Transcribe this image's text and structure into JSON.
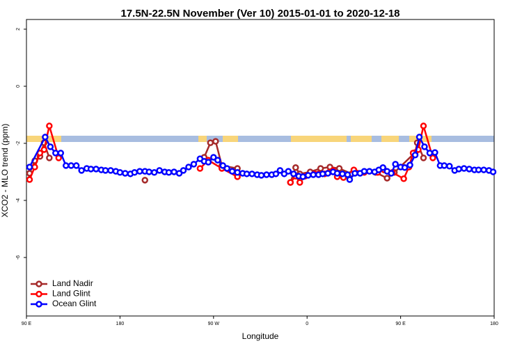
{
  "chart_data": {
    "type": "line",
    "title": "17.5N-22.5N November (Ver 10)   2015-01-01 to 2020-12-18",
    "x_label": "Longitude",
    "y_label": "XCO2 - MLO trend (ppm)",
    "xlim": [
      90,
      540
    ],
    "ylim": [
      -8.05,
      2.34
    ],
    "xticks": [
      {
        "value": 90,
        "label": "90 E"
      },
      180,
      {
        "value": 270,
        "label": "90 W"
      },
      {
        "value": 360,
        "label": "0"
      },
      {
        "value": 450,
        "label": "90 E"
      },
      {
        "value": 540,
        "label": "180"
      }
    ],
    "yticks": [
      2,
      0,
      -2,
      -4,
      -6
    ],
    "legend": "bottom-left",
    "series": [
      {
        "name": "Land Nadir",
        "color": "#a52a2a",
        "x": [
          93,
          98,
          103,
          107,
          112,
          null,
          204,
          null,
          261,
          267,
          272,
          278,
          293,
          null,
          344,
          349,
          353,
          363,
          373,
          382,
          391,
          403,
          426,
          437,
          444,
          464,
          466,
          472
        ],
        "values": [
          -3.05,
          -2.61,
          -2.46,
          -1.98,
          -2.51,
          null,
          -3.29,
          null,
          -2.49,
          -1.98,
          -1.93,
          -2.78,
          -2.88,
          null,
          -3.37,
          -2.85,
          -3.07,
          -3.0,
          -2.88,
          -2.83,
          -2.88,
          -3.07,
          -3.02,
          -3.22,
          -3.02,
          -2.32,
          -1.98,
          -2.51
        ]
      },
      {
        "name": "Land Glint",
        "color": "#ff0000",
        "x": [
          93,
          98,
          103,
          107,
          112,
          121,
          null,
          257,
          265,
          278,
          293,
          null,
          344,
          349,
          353,
          358,
          367,
          371,
          377,
          381,
          385,
          389,
          395,
          405,
          415,
          428,
          434,
          442,
          453,
          458,
          462,
          467,
          472,
          481
        ],
        "values": [
          -3.27,
          -2.83,
          -2.34,
          -2.22,
          -1.39,
          -2.51,
          null,
          -2.88,
          -2.59,
          -2.88,
          -3.17,
          null,
          -3.37,
          -3.15,
          -3.37,
          -3.15,
          -3.07,
          -3.07,
          -3.07,
          -3.02,
          -2.95,
          -3.17,
          -3.2,
          -2.93,
          -3.02,
          -3.02,
          -2.93,
          -3.02,
          -3.24,
          -2.83,
          -2.34,
          -2.22,
          -1.39,
          -2.51
        ]
      },
      {
        "name": "Ocean Glint",
        "color": "#0000ff",
        "x": [
          93,
          108,
          113,
          118,
          123,
          128,
          133,
          138,
          143,
          148,
          152,
          157,
          162,
          166,
          171,
          176,
          180,
          185,
          190,
          194,
          199,
          204,
          208,
          213,
          218,
          223,
          227,
          232,
          237,
          241,
          246,
          251,
          257,
          261,
          265,
          270,
          274,
          279,
          283,
          288,
          293,
          298,
          302,
          307,
          312,
          316,
          321,
          326,
          330,
          334,
          338,
          342,
          347,
          352,
          356,
          361,
          366,
          371,
          375,
          380,
          385,
          389,
          394,
          399,
          401,
          406,
          411,
          415,
          420,
          425,
          429,
          433,
          437,
          441,
          445,
          450,
          454,
          459,
          464,
          468,
          473,
          478,
          483,
          488,
          492,
          497,
          502,
          506,
          511,
          516,
          521,
          525,
          530,
          535,
          539
        ],
        "values": [
          -2.83,
          -1.78,
          -2.12,
          -2.34,
          -2.34,
          -2.78,
          -2.78,
          -2.78,
          -2.95,
          -2.88,
          -2.9,
          -2.9,
          -2.93,
          -2.95,
          -2.95,
          -2.98,
          -3.02,
          -3.05,
          -3.07,
          -3.02,
          -2.98,
          -2.98,
          -3.0,
          -3.02,
          -2.95,
          -3.0,
          -3.02,
          -3.0,
          -3.05,
          -2.95,
          -2.83,
          -2.73,
          -2.54,
          -2.63,
          -2.66,
          -2.49,
          -2.59,
          -2.78,
          -2.88,
          -2.98,
          -3.02,
          -3.05,
          -3.07,
          -3.07,
          -3.1,
          -3.12,
          -3.1,
          -3.1,
          -3.07,
          -2.95,
          -3.07,
          -2.98,
          -3.07,
          -3.15,
          -3.17,
          -3.12,
          -3.1,
          -3.1,
          -3.07,
          -3.05,
          -3.0,
          -3.05,
          -3.07,
          -3.1,
          -3.27,
          -3.05,
          -3.05,
          -2.98,
          -2.98,
          -3.0,
          -2.93,
          -2.85,
          -2.98,
          -3.05,
          -2.73,
          -2.83,
          -2.85,
          -2.76,
          -2.41,
          -1.78,
          -2.12,
          -2.34,
          -2.32,
          -2.78,
          -2.78,
          -2.8,
          -2.95,
          -2.9,
          -2.88,
          -2.9,
          -2.93,
          -2.93,
          -2.93,
          -2.95,
          -3.0
        ]
      }
    ]
  }
}
